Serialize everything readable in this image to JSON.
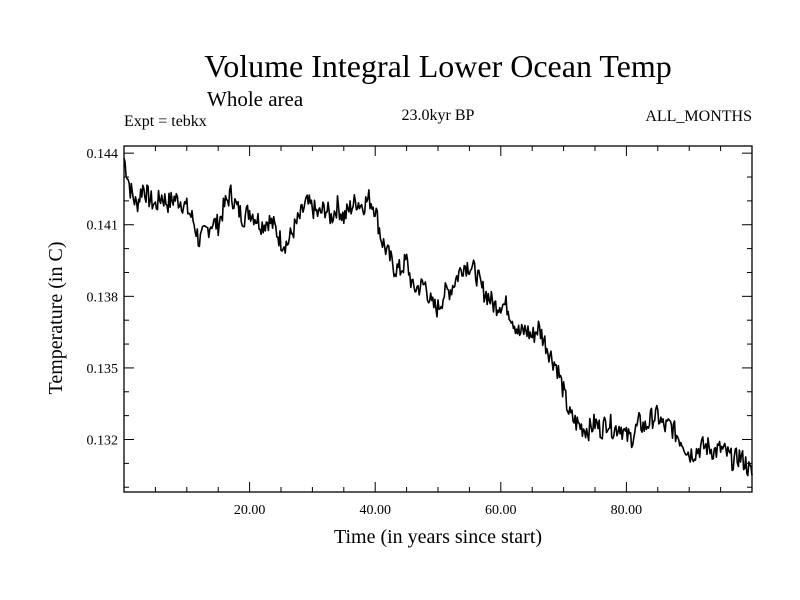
{
  "chart_data": {
    "type": "line",
    "title": "Volume Integral Lower Ocean Temp",
    "subtitle": "Whole area",
    "experiment": "Expt = tebkx",
    "period": "23.0kyr BP",
    "months": "ALL_MONTHS",
    "xlabel": "Time (in years since start)",
    "ylabel": "Temperature (in C)",
    "xlim": [
      0,
      100
    ],
    "ylim": [
      0.1298,
      0.1443
    ],
    "x_ticks": [
      20,
      40,
      60,
      80
    ],
    "x_tick_labels": [
      "20.00",
      "40.00",
      "60.00",
      "80.00"
    ],
    "y_ticks": [
      0.132,
      0.135,
      0.138,
      0.141,
      0.144
    ],
    "y_tick_labels": [
      "0.132",
      "0.135",
      "0.138",
      "0.141",
      "0.144"
    ],
    "grid": false,
    "series": [
      {
        "name": "tebkx",
        "color": "#000000",
        "x": [
          0,
          1,
          2,
          3,
          4,
          5,
          6,
          7,
          8,
          9,
          10,
          11,
          12,
          13,
          14,
          15,
          16,
          17,
          18,
          19,
          20,
          21,
          22,
          23,
          24,
          25,
          26,
          27,
          28,
          29,
          30,
          31,
          32,
          33,
          34,
          35,
          36,
          37,
          38,
          39,
          40,
          41,
          42,
          43,
          44,
          45,
          46,
          47,
          48,
          49,
          50,
          51,
          52,
          53,
          54,
          55,
          56,
          57,
          58,
          59,
          60,
          61,
          62,
          63,
          64,
          65,
          66,
          67,
          68,
          69,
          70,
          71,
          72,
          73,
          74,
          75,
          76,
          77,
          78,
          79,
          80,
          81,
          82,
          83,
          84,
          85,
          86,
          87,
          88,
          89,
          90,
          91,
          92,
          93,
          94,
          95,
          96,
          97,
          98,
          99,
          100
        ],
        "values": [
          0.1438,
          0.1425,
          0.1418,
          0.1426,
          0.1421,
          0.1418,
          0.1422,
          0.1419,
          0.1421,
          0.142,
          0.1417,
          0.1412,
          0.1403,
          0.1407,
          0.1411,
          0.141,
          0.1418,
          0.1423,
          0.1417,
          0.1413,
          0.1416,
          0.1413,
          0.141,
          0.1412,
          0.1409,
          0.1403,
          0.1402,
          0.1408,
          0.1413,
          0.1419,
          0.1417,
          0.1414,
          0.1417,
          0.1413,
          0.1418,
          0.1413,
          0.1417,
          0.142,
          0.1418,
          0.1421,
          0.1417,
          0.1404,
          0.1398,
          0.1392,
          0.1391,
          0.1395,
          0.1383,
          0.1384,
          0.1385,
          0.1376,
          0.1375,
          0.1381,
          0.1383,
          0.1388,
          0.1393,
          0.1393,
          0.139,
          0.1383,
          0.138,
          0.1376,
          0.1377,
          0.1376,
          0.137,
          0.1364,
          0.1366,
          0.1363,
          0.1367,
          0.1361,
          0.1355,
          0.135,
          0.134,
          0.133,
          0.1327,
          0.1325,
          0.1324,
          0.1327,
          0.1324,
          0.1328,
          0.1324,
          0.1326,
          0.1321,
          0.1321,
          0.1327,
          0.1325,
          0.1329,
          0.133,
          0.1325,
          0.1326,
          0.1322,
          0.1319,
          0.1314,
          0.1315,
          0.1317,
          0.1317,
          0.1315,
          0.1316,
          0.1314,
          0.1311,
          0.1313,
          0.131,
          0.1305
        ]
      }
    ]
  }
}
